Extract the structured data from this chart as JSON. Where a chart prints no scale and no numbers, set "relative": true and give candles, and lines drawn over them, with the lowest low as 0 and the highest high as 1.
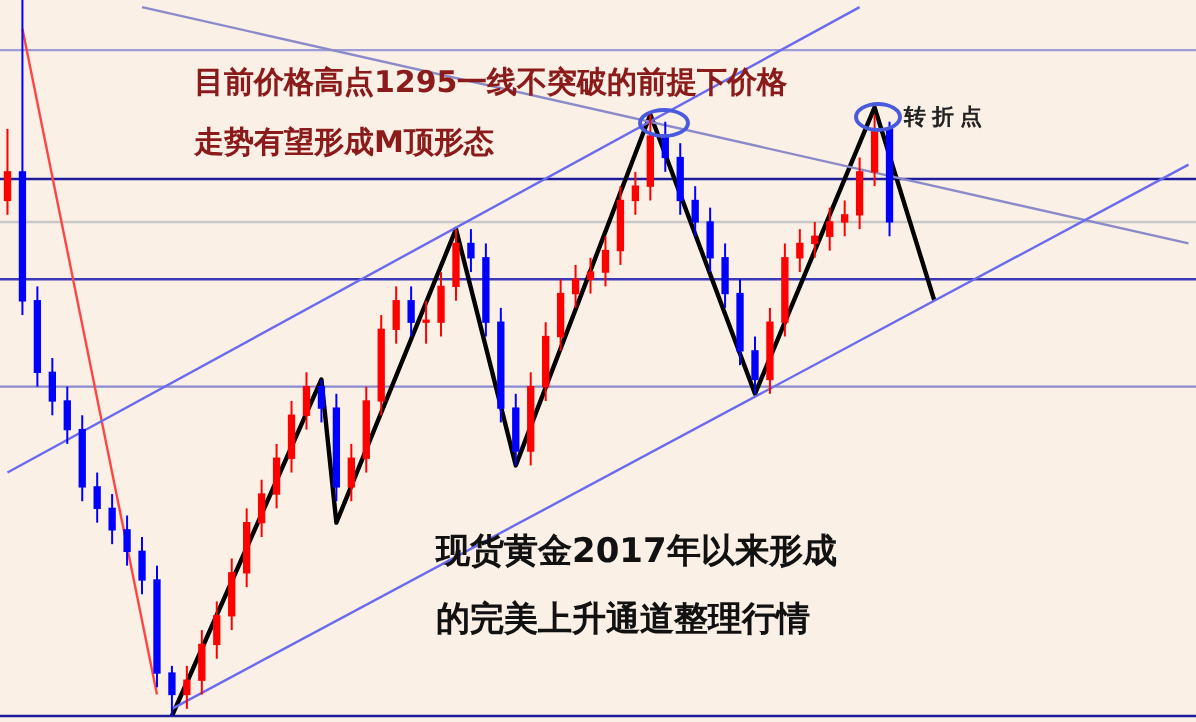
{
  "chart_data": {
    "type": "candlestick",
    "relative": true,
    "categories": [
      null,
      null,
      null,
      null,
      null,
      null,
      null,
      null,
      null,
      null,
      null,
      null,
      null,
      null,
      null,
      null,
      null,
      null,
      null,
      null,
      null,
      null,
      null,
      null,
      null,
      null,
      null,
      null,
      null,
      null,
      null,
      null,
      null,
      null,
      null,
      null,
      null,
      null,
      null,
      null,
      null,
      null,
      null,
      null,
      null,
      null,
      null,
      null,
      null,
      null,
      null,
      null,
      null,
      null,
      null,
      null,
      null,
      null,
      null,
      null,
      null,
      null,
      null,
      null,
      null,
      null,
      null,
      null,
      null,
      null,
      null,
      null,
      null,
      null,
      null,
      null,
      null,
      null,
      null,
      null
    ],
    "ohlc": [
      [
        0.72,
        0.82,
        0.7,
        0.76
      ],
      [
        0.76,
        1,
        0.56,
        0.58
      ],
      [
        0.58,
        0.6,
        0.46,
        0.48
      ],
      [
        0.48,
        0.5,
        0.42,
        0.44
      ],
      [
        0.44,
        0.46,
        0.38,
        0.4
      ],
      [
        0.4,
        0.42,
        0.3,
        0.32
      ],
      [
        0.32,
        0.34,
        0.27,
        0.29
      ],
      [
        0.29,
        0.31,
        0.24,
        0.26
      ],
      [
        0.26,
        0.28,
        0.21,
        0.23
      ],
      [
        0.23,
        0.25,
        0.17,
        0.19
      ],
      [
        0.19,
        0.21,
        0.04,
        0.06
      ],
      [
        0.06,
        0.07,
        0,
        0.03
      ],
      [
        0.03,
        0.07,
        0.01,
        0.05
      ],
      [
        0.05,
        0.12,
        0.03,
        0.1
      ],
      [
        0.1,
        0.16,
        0.08,
        0.14
      ],
      [
        0.14,
        0.22,
        0.12,
        0.2
      ],
      [
        0.2,
        0.29,
        0.18,
        0.27
      ],
      [
        0.27,
        0.33,
        0.25,
        0.31
      ],
      [
        0.31,
        0.38,
        0.29,
        0.36
      ],
      [
        0.36,
        0.44,
        0.34,
        0.42
      ],
      [
        0.42,
        0.48,
        0.4,
        0.46
      ],
      [
        0.46,
        0.47,
        0.41,
        0.43
      ],
      [
        0.43,
        0.45,
        0.3,
        0.32
      ],
      [
        0.32,
        0.38,
        0.3,
        0.36
      ],
      [
        0.36,
        0.46,
        0.34,
        0.44
      ],
      [
        0.44,
        0.56,
        0.42,
        0.54
      ],
      [
        0.54,
        0.6,
        0.52,
        0.58
      ],
      [
        0.58,
        0.6,
        0.53,
        0.55
      ],
      [
        0.55,
        0.58,
        0.52,
        0.55
      ],
      [
        0.55,
        0.62,
        0.53,
        0.6
      ],
      [
        0.6,
        0.68,
        0.58,
        0.66
      ],
      [
        0.66,
        0.68,
        0.62,
        0.64
      ],
      [
        0.64,
        0.66,
        0.53,
        0.55
      ],
      [
        0.55,
        0.57,
        0.41,
        0.43
      ],
      [
        0.43,
        0.45,
        0.35,
        0.37
      ],
      [
        0.37,
        0.48,
        0.35,
        0.46
      ],
      [
        0.46,
        0.55,
        0.44,
        0.53
      ],
      [
        0.53,
        0.61,
        0.51,
        0.59
      ],
      [
        0.59,
        0.63,
        0.57,
        0.61
      ],
      [
        0.61,
        0.64,
        0.59,
        0.62
      ],
      [
        0.62,
        0.67,
        0.6,
        0.65
      ],
      [
        0.65,
        0.74,
        0.63,
        0.72
      ],
      [
        0.72,
        0.76,
        0.7,
        0.74
      ],
      [
        0.74,
        0.84,
        0.72,
        0.81
      ],
      [
        0.81,
        0.83,
        0.76,
        0.78
      ],
      [
        0.78,
        0.8,
        0.7,
        0.72
      ],
      [
        0.72,
        0.74,
        0.67,
        0.69
      ],
      [
        0.69,
        0.71,
        0.62,
        0.64
      ],
      [
        0.64,
        0.66,
        0.57,
        0.59
      ],
      [
        0.59,
        0.61,
        0.49,
        0.51
      ],
      [
        0.51,
        0.53,
        0.45,
        0.47
      ],
      [
        0.47,
        0.57,
        0.45,
        0.55
      ],
      [
        0.55,
        0.66,
        0.53,
        0.64
      ],
      [
        0.64,
        0.68,
        0.62,
        0.66
      ],
      [
        0.66,
        0.69,
        0.64,
        0.67
      ],
      [
        0.67,
        0.71,
        0.65,
        0.69
      ],
      [
        0.69,
        0.72,
        0.67,
        0.7
      ],
      [
        0.7,
        0.78,
        0.68,
        0.76
      ],
      [
        0.76,
        0.84,
        0.74,
        0.82
      ],
      [
        0.82,
        0.83,
        0.67,
        0.69
      ],
      null,
      null,
      null,
      null,
      null,
      null,
      null,
      null,
      null,
      null,
      null,
      null,
      null,
      null,
      null,
      null,
      null,
      null,
      null,
      null
    ],
    "colors": [
      "#ff0000",
      "#0000ff",
      "#0000ff",
      "#0000ff",
      "#0000ff",
      "#0000ff",
      "#0000ff",
      "#0000ff",
      "#0000ff",
      "#0000ff",
      "#0000ff",
      "#0000ff",
      "#ff0000",
      "#ff0000",
      "#ff0000",
      "#ff0000",
      "#ff0000",
      "#ff0000",
      "#ff0000",
      "#ff0000",
      "#ff0000",
      "#0000ff",
      "#0000ff",
      "#ff0000",
      "#ff0000",
      "#ff0000",
      "#ff0000",
      "#0000ff",
      "#ff0000",
      "#ff0000",
      "#ff0000",
      "#0000ff",
      "#0000ff",
      "#0000ff",
      "#0000ff",
      "#ff0000",
      "#ff0000",
      "#ff0000",
      "#ff0000",
      "#ff0000",
      "#ff0000",
      "#ff0000",
      "#ff0000",
      "#ff0000",
      "#0000ff",
      "#0000ff",
      "#0000ff",
      "#0000ff",
      "#0000ff",
      "#0000ff",
      "#0000ff",
      "#ff0000",
      "#ff0000",
      "#ff0000",
      "#ff0000",
      "#ff0000",
      "#ff0000",
      "#ff0000",
      "#ff0000",
      "#0000ff",
      null,
      null,
      null,
      null,
      null,
      null,
      null,
      null,
      null,
      null,
      null,
      null,
      null,
      null,
      null,
      null,
      null,
      null,
      null,
      null
    ],
    "series": [
      {
        "type": "line",
        "color": "#6a6aee",
        "values": [
          0.34,
          null,
          null,
          null,
          null,
          null,
          null,
          null,
          null,
          null,
          null,
          null,
          null,
          null,
          null,
          null,
          null,
          null,
          null,
          null,
          null,
          null,
          null,
          null,
          null,
          null,
          null,
          null,
          null,
          null,
          null,
          null,
          null,
          null,
          null,
          null,
          null,
          null,
          null,
          null,
          null,
          null,
          null,
          null,
          null,
          null,
          null,
          null,
          null,
          null,
          null,
          null,
          null,
          null,
          null,
          null,
          null,
          0.99,
          null,
          null,
          null,
          null,
          null,
          null,
          null,
          null,
          null,
          null,
          null,
          null,
          null,
          null,
          null,
          null,
          null,
          null,
          null,
          null,
          null,
          null
        ]
      },
      {
        "type": "line",
        "color": "#6a6aee",
        "values": [
          null,
          null,
          null,
          null,
          null,
          null,
          null,
          null,
          null,
          null,
          null,
          0.01,
          null,
          null,
          null,
          null,
          null,
          null,
          null,
          null,
          null,
          null,
          null,
          null,
          null,
          null,
          null,
          null,
          null,
          null,
          null,
          null,
          null,
          null,
          null,
          null,
          null,
          null,
          null,
          null,
          null,
          null,
          null,
          null,
          null,
          null,
          null,
          null,
          null,
          null,
          null,
          null,
          null,
          null,
          null,
          null,
          null,
          null,
          null,
          null,
          null,
          null,
          null,
          null,
          null,
          null,
          null,
          null,
          null,
          null,
          null,
          null,
          null,
          null,
          null,
          null,
          null,
          null,
          null,
          0.77
        ]
      },
      {
        "type": "line",
        "color": "#8a8ac8",
        "values": [
          null,
          null,
          null,
          null,
          null,
          null,
          null,
          null,
          null,
          0.99,
          null,
          null,
          null,
          null,
          null,
          null,
          null,
          null,
          null,
          null,
          null,
          null,
          null,
          null,
          null,
          null,
          null,
          null,
          null,
          null,
          null,
          null,
          null,
          null,
          null,
          null,
          null,
          null,
          null,
          null,
          null,
          null,
          null,
          null,
          null,
          null,
          null,
          null,
          null,
          null,
          null,
          null,
          null,
          null,
          null,
          null,
          null,
          null,
          null,
          null,
          null,
          null,
          null,
          null,
          null,
          null,
          null,
          null,
          null,
          null,
          null,
          null,
          null,
          null,
          null,
          null,
          null,
          null,
          null,
          0.66
        ]
      },
      {
        "type": "line",
        "color": "#ff4444",
        "values": [
          null,
          0.96,
          null,
          null,
          null,
          null,
          null,
          null,
          null,
          null,
          0.03,
          null,
          null,
          null,
          null,
          null,
          null,
          null,
          null,
          null,
          null,
          null,
          null,
          null,
          null,
          null,
          null,
          null,
          null,
          null,
          null,
          null,
          null,
          null,
          null,
          null,
          null,
          null,
          null,
          null,
          null,
          null,
          null,
          null,
          null,
          null,
          null,
          null,
          null,
          null,
          null,
          null,
          null,
          null,
          null,
          null,
          null,
          null,
          null,
          null,
          null,
          null,
          null,
          null,
          null,
          null,
          null,
          null,
          null,
          null,
          null,
          null,
          null,
          null,
          null,
          null,
          null,
          null,
          null,
          null
        ]
      },
      {
        "type": "line",
        "color": "#000000",
        "values": [
          null,
          null,
          null,
          null,
          null,
          null,
          null,
          null,
          null,
          null,
          null,
          0,
          null,
          null,
          null,
          null,
          null,
          null,
          null,
          null,
          null,
          0.47,
          0.27,
          null,
          null,
          null,
          null,
          null,
          null,
          null,
          0.68,
          null,
          null,
          null,
          0.35,
          null,
          null,
          null,
          null,
          null,
          null,
          null,
          null,
          0.84,
          null,
          null,
          null,
          null,
          null,
          null,
          0.45,
          null,
          null,
          null,
          null,
          null,
          null,
          null,
          0.85,
          null,
          null,
          null,
          0.58,
          null,
          null,
          null,
          null,
          null,
          null,
          null,
          null,
          null,
          null,
          null,
          null,
          null,
          null,
          null,
          null,
          null
        ]
      }
    ],
    "ref_lines": [
      {
        "axis": "y",
        "value": 0.93,
        "color": "#9c9cd8"
      },
      {
        "axis": "y",
        "value": 0.75,
        "color": "#1c1c9c"
      },
      {
        "axis": "y",
        "value": 0.69,
        "color": "#c8c8c8"
      },
      {
        "axis": "y",
        "value": 0.61,
        "color": "#3a3ab8"
      },
      {
        "axis": "y",
        "value": 0.46,
        "color": "#8a8ad0"
      },
      {
        "axis": "y",
        "value": 0,
        "color": "#1c1c9c"
      }
    ],
    "annotations": [
      "目前价格高点1295一线不突破的前提下价格",
      "走势有望形成M顶形态",
      "转折点",
      "现货黄金2017年以来形成",
      "的完美上升通道整理行情"
    ]
  }
}
